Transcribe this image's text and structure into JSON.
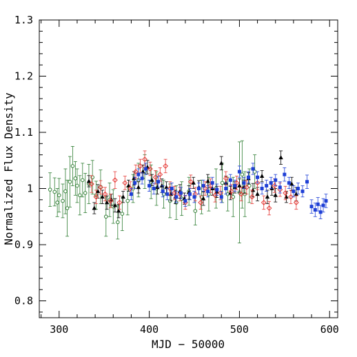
{
  "chart_data": {
    "type": "scatter",
    "xlabel": "MJD − 50000",
    "ylabel": "Normalized Flux Density",
    "xlim": [
      278,
      609
    ],
    "ylim": [
      0.77,
      1.3
    ],
    "x_ticks": [
      300,
      400,
      500,
      600
    ],
    "x_tick_labels": [
      "300",
      "400",
      "500",
      "600"
    ],
    "y_ticks": [
      0.8,
      0.9,
      1.0,
      1.1,
      1.2,
      1.3
    ],
    "y_tick_labels": [
      "0.8",
      "0.9",
      "1",
      "1.1",
      "1.2",
      "1.3"
    ],
    "x_minor_step": 20,
    "y_minor_step": 0.02,
    "grid": false,
    "series": [
      {
        "color": "#2e7d32",
        "marker": "open-circle",
        "points": [
          [
            290,
            0.998,
            0.03
          ],
          [
            295,
            0.994,
            0.025
          ],
          [
            298,
            0.975,
            0.025
          ],
          [
            300,
            0.988,
            0.03
          ],
          [
            304,
            0.978,
            0.03
          ],
          [
            307,
            0.995,
            0.04
          ],
          [
            309,
            0.965,
            0.05
          ],
          [
            312,
            1.012,
            0.045
          ],
          [
            315,
            1.04,
            0.035
          ],
          [
            318,
            1.018,
            0.03
          ],
          [
            320,
            1.005,
            0.03
          ],
          [
            323,
            0.988,
            0.035
          ],
          [
            326,
            1.015,
            0.03
          ],
          [
            329,
            0.992,
            0.035
          ],
          [
            333,
            1.008,
            0.035
          ],
          [
            337,
            1.02,
            0.03
          ],
          [
            341,
            0.988,
            0.025
          ],
          [
            346,
            1.003,
            0.03
          ],
          [
            352,
            0.95,
            0.035
          ],
          [
            356,
            0.98,
            0.03
          ],
          [
            360,
            0.968,
            0.03
          ],
          [
            365,
            0.94,
            0.03
          ],
          [
            370,
            0.955,
            0.03
          ],
          [
            376,
            0.978,
            0.025
          ],
          [
            382,
            1.0,
            0.025
          ],
          [
            388,
            1.015,
            0.03
          ],
          [
            395,
            1.03,
            0.03
          ],
          [
            402,
            1.012,
            0.03
          ],
          [
            408,
            1.0,
            0.03
          ],
          [
            416,
            0.99,
            0.025
          ],
          [
            423,
            0.978,
            0.03
          ],
          [
            430,
            0.975,
            0.03
          ],
          [
            436,
            0.982,
            0.03
          ],
          [
            444,
            0.995,
            0.025
          ],
          [
            451,
            0.96,
            0.025
          ],
          [
            458,
            0.985,
            0.03
          ],
          [
            466,
            0.99,
            0.03
          ],
          [
            474,
            1.0,
            0.035
          ],
          [
            481,
            1.01,
            0.035
          ],
          [
            487,
            0.99,
            0.03
          ],
          [
            493,
            0.985,
            0.035
          ],
          [
            500,
            0.993,
            0.09
          ],
          [
            503,
            1.025,
            0.06
          ],
          [
            506,
            0.99,
            0.04
          ],
          [
            511,
            1.005,
            0.03
          ],
          [
            517,
            1.03,
            0.03
          ]
        ]
      },
      {
        "color": "#000000",
        "marker": "filled-triangle",
        "points": [
          [
            333,
            1.013,
            0.01
          ],
          [
            339,
            0.965,
            0.01
          ],
          [
            343,
            0.995,
            0.012
          ],
          [
            348,
            0.985,
            0.012
          ],
          [
            353,
            0.975,
            0.012
          ],
          [
            358,
            0.98,
            0.01
          ],
          [
            362,
            0.97,
            0.012
          ],
          [
            366,
            0.96,
            0.012
          ],
          [
            371,
            0.985,
            0.01
          ],
          [
            377,
            1.005,
            0.01
          ],
          [
            383,
            1.018,
            0.012
          ],
          [
            388,
            1.002,
            0.01
          ],
          [
            393,
            1.03,
            0.012
          ],
          [
            398,
            1.038,
            0.012
          ],
          [
            403,
            1.015,
            0.01
          ],
          [
            409,
            1.002,
            0.012
          ],
          [
            414,
            1.005,
            0.012
          ],
          [
            419,
            1.002,
            0.01
          ],
          [
            424,
            0.99,
            0.012
          ],
          [
            429,
            0.985,
            0.012
          ],
          [
            434,
            0.995,
            0.012
          ],
          [
            439,
            0.982,
            0.01
          ],
          [
            444,
            0.993,
            0.012
          ],
          [
            449,
            1.01,
            0.01
          ],
          [
            455,
            1.002,
            0.012
          ],
          [
            460,
            0.982,
            0.012
          ],
          [
            465,
            1.013,
            0.012
          ],
          [
            470,
            1.0,
            0.012
          ],
          [
            475,
            0.994,
            0.01
          ],
          [
            480,
            1.045,
            0.012
          ],
          [
            485,
            1.01,
            0.012
          ],
          [
            490,
            0.992,
            0.012
          ],
          [
            495,
            1.002,
            0.01
          ],
          [
            500,
            1.005,
            0.012
          ],
          [
            505,
            1.003,
            0.012
          ],
          [
            510,
            1.018,
            0.01
          ],
          [
            515,
            0.997,
            0.012
          ],
          [
            520,
            0.99,
            0.012
          ],
          [
            525,
            1.022,
            0.01
          ],
          [
            531,
            0.985,
            0.012
          ],
          [
            536,
            1.0,
            0.012
          ],
          [
            540,
            0.988,
            0.012
          ],
          [
            546,
            1.055,
            0.012
          ],
          [
            552,
            0.985,
            0.01
          ],
          [
            558,
            1.008,
            0.012
          ],
          [
            563,
            0.99,
            0.012
          ]
        ]
      },
      {
        "color": "#e53935",
        "marker": "open-diamond",
        "points": [
          [
            336,
            1.008,
            0.015
          ],
          [
            341,
            0.985,
            0.012
          ],
          [
            346,
            1.002,
            0.012
          ],
          [
            351,
            0.99,
            0.012
          ],
          [
            357,
            0.978,
            0.012
          ],
          [
            362,
            1.015,
            0.015
          ],
          [
            367,
            0.975,
            0.012
          ],
          [
            373,
            1.01,
            0.012
          ],
          [
            379,
            1.0,
            0.012
          ],
          [
            385,
            1.03,
            0.012
          ],
          [
            390,
            1.04,
            0.012
          ],
          [
            395,
            1.052,
            0.015
          ],
          [
            401,
            1.035,
            0.012
          ],
          [
            407,
            1.02,
            0.012
          ],
          [
            412,
            1.025,
            0.012
          ],
          [
            418,
            1.04,
            0.012
          ],
          [
            423,
            1.0,
            0.012
          ],
          [
            428,
            0.992,
            0.012
          ],
          [
            434,
            0.99,
            0.012
          ],
          [
            440,
            0.975,
            0.012
          ],
          [
            446,
            1.012,
            0.012
          ],
          [
            451,
            0.99,
            0.012
          ],
          [
            457,
            0.975,
            0.012
          ],
          [
            462,
            1.0,
            0.012
          ],
          [
            468,
            1.005,
            0.012
          ],
          [
            473,
            0.988,
            0.012
          ],
          [
            479,
            0.992,
            0.012
          ],
          [
            485,
            1.018,
            0.012
          ],
          [
            491,
            0.995,
            0.012
          ],
          [
            497,
            1.01,
            0.012
          ],
          [
            502,
            0.99,
            0.012
          ],
          [
            508,
            1.002,
            0.012
          ],
          [
            514,
            0.985,
            0.012
          ],
          [
            520,
            1.01,
            0.012
          ],
          [
            527,
            0.975,
            0.012
          ],
          [
            533,
            0.965,
            0.012
          ],
          [
            539,
            1.005,
            0.012
          ],
          [
            545,
            0.998,
            0.012
          ],
          [
            551,
            0.992,
            0.012
          ],
          [
            557,
            0.985,
            0.012
          ],
          [
            563,
            0.975,
            0.012
          ]
        ]
      },
      {
        "color": "#1e3fd6",
        "marker": "filled-square",
        "points": [
          [
            380,
            0.99,
            0.01
          ],
          [
            384,
            1.01,
            0.01
          ],
          [
            388,
            1.025,
            0.01
          ],
          [
            392,
            1.018,
            0.01
          ],
          [
            396,
            1.035,
            0.01
          ],
          [
            400,
            1.005,
            0.01
          ],
          [
            405,
            1.0,
            0.01
          ],
          [
            410,
            1.012,
            0.01
          ],
          [
            415,
            0.995,
            0.01
          ],
          [
            420,
            0.99,
            0.01
          ],
          [
            425,
            1.0,
            0.01
          ],
          [
            430,
            0.985,
            0.01
          ],
          [
            435,
            0.992,
            0.01
          ],
          [
            440,
            0.978,
            0.01
          ],
          [
            445,
            0.99,
            0.01
          ],
          [
            450,
            0.985,
            0.01
          ],
          [
            455,
            1.0,
            0.01
          ],
          [
            460,
            1.005,
            0.01
          ],
          [
            465,
            0.995,
            0.01
          ],
          [
            470,
            1.01,
            0.01
          ],
          [
            475,
            0.998,
            0.01
          ],
          [
            480,
            0.985,
            0.01
          ],
          [
            485,
            1.0,
            0.01
          ],
          [
            490,
            1.015,
            0.01
          ],
          [
            495,
            1.005,
            0.01
          ],
          [
            500,
            1.03,
            0.01
          ],
          [
            505,
            1.01,
            0.01
          ],
          [
            510,
            1.02,
            0.01
          ],
          [
            515,
            1.035,
            0.01
          ],
          [
            520,
            1.02,
            0.01
          ],
          [
            525,
            1.0,
            0.01
          ],
          [
            530,
            1.005,
            0.01
          ],
          [
            535,
            1.01,
            0.01
          ],
          [
            540,
            1.015,
            0.01
          ],
          [
            545,
            1.002,
            0.01
          ],
          [
            550,
            1.025,
            0.012
          ],
          [
            555,
            1.01,
            0.01
          ],
          [
            560,
            0.995,
            0.01
          ],
          [
            565,
            1.0,
            0.01
          ],
          [
            570,
            0.995,
            0.01
          ],
          [
            575,
            1.012,
            0.012
          ],
          [
            580,
            0.968,
            0.012
          ],
          [
            584,
            0.962,
            0.012
          ],
          [
            587,
            0.972,
            0.012
          ],
          [
            590,
            0.958,
            0.012
          ],
          [
            593,
            0.97,
            0.012
          ],
          [
            596,
            0.978,
            0.012
          ]
        ]
      }
    ]
  }
}
